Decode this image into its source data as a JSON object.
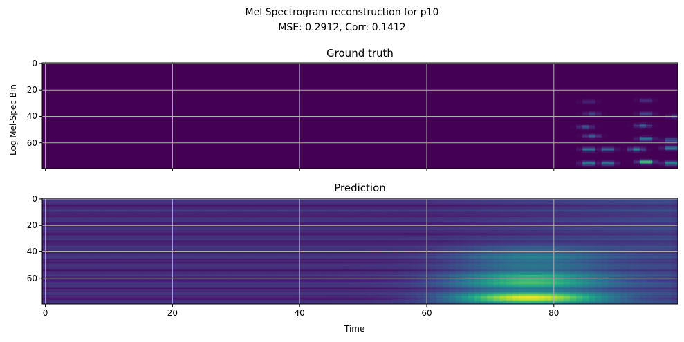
{
  "chart_data": {
    "suptitle_line1": "Mel Spectrogram reconstruction for p10",
    "suptitle_line2": "MSE: 0.2912, Corr: 0.1412",
    "xlabel": "Time",
    "ylabel": "Log Mel-Spec Bin",
    "colormap": "viridis",
    "grid": true,
    "xlim": [
      -0.5,
      99.5
    ],
    "ylim": [
      79.5,
      -0.5
    ],
    "x_ticks": [
      "0",
      "20",
      "40",
      "60",
      "80"
    ],
    "y_ticks": [
      "0",
      "20",
      "40",
      "60"
    ],
    "panels": [
      {
        "type": "heatmap",
        "title": "Ground truth",
        "show_x_tick_labels": false,
        "time_frames": 100,
        "mel_bins": 80,
        "blobs": [
          {
            "x": 85.5,
            "y": 75.5,
            "value": 0.55
          },
          {
            "x": 88.5,
            "y": 75.5,
            "value": 0.5
          },
          {
            "x": 94.5,
            "y": 74.5,
            "value": 0.95
          },
          {
            "x": 98.5,
            "y": 75.5,
            "value": 0.6
          },
          {
            "x": 85.5,
            "y": 65.0,
            "value": 0.45
          },
          {
            "x": 88.5,
            "y": 65.0,
            "value": 0.4
          },
          {
            "x": 93.0,
            "y": 65.0,
            "value": 0.45
          },
          {
            "x": 98.5,
            "y": 64.0,
            "value": 0.5
          },
          {
            "x": 86.0,
            "y": 55.0,
            "value": 0.3
          },
          {
            "x": 94.5,
            "y": 57.0,
            "value": 0.45
          },
          {
            "x": 98.5,
            "y": 58.0,
            "value": 0.35
          },
          {
            "x": 85.0,
            "y": 48.0,
            "value": 0.25
          },
          {
            "x": 94.0,
            "y": 47.0,
            "value": 0.3
          },
          {
            "x": 86.0,
            "y": 38.0,
            "value": 0.2
          },
          {
            "x": 94.5,
            "y": 38.0,
            "value": 0.25
          },
          {
            "x": 99.0,
            "y": 40.0,
            "value": 0.2
          },
          {
            "x": 85.5,
            "y": 29.0,
            "value": 0.12
          },
          {
            "x": 94.5,
            "y": 28.0,
            "value": 0.15
          }
        ]
      },
      {
        "type": "heatmap",
        "title": "Prediction",
        "show_x_tick_labels": true,
        "time_frames": 100,
        "mel_bins": 80,
        "peak": {
          "x": 76,
          "y": 75,
          "value": 1.0
        }
      }
    ]
  }
}
